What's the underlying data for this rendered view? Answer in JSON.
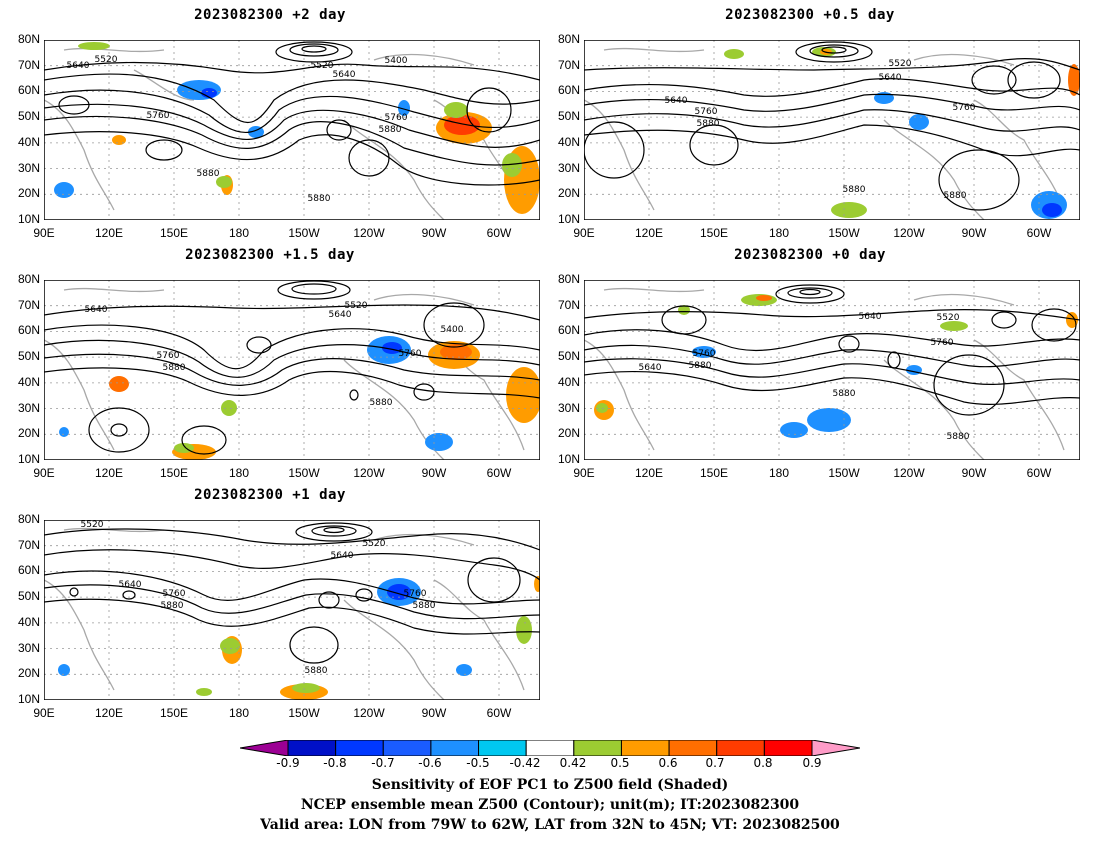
{
  "panels": [
    {
      "title": "2023082300  +2  day",
      "labels": [
        "5640",
        "5520",
        "5520",
        "5640",
        "5400",
        "5760",
        "5760",
        "5880",
        "5880",
        "5880"
      ]
    },
    {
      "title": "2023082300  +0.5  day",
      "labels": [
        "5520",
        "5640",
        "5640",
        "5760",
        "5760",
        "5880",
        "5880",
        "5880"
      ]
    },
    {
      "title": "2023082300  +1.5  day",
      "labels": [
        "5640",
        "5520",
        "5640",
        "5400",
        "5760",
        "5760",
        "5880",
        "5880"
      ]
    },
    {
      "title": "2023082300  +0  day",
      "labels": [
        "5640",
        "5520",
        "5760",
        "5760",
        "5640",
        "5880",
        "5880",
        "5880"
      ]
    },
    {
      "title": "2023082300  +1  day",
      "labels": [
        "5520",
        "5520",
        "5640",
        "5640",
        "5760",
        "5760",
        "5880",
        "5880",
        "5880"
      ]
    }
  ],
  "axes": {
    "lat_labels": [
      "80N",
      "70N",
      "60N",
      "50N",
      "40N",
      "30N",
      "20N",
      "10N"
    ],
    "lon_labels": [
      "90E",
      "120E",
      "150E",
      "180",
      "150W",
      "120W",
      "90W",
      "60W"
    ]
  },
  "colorbar": {
    "ticks": [
      "-0.9",
      "-0.8",
      "-0.7",
      "-0.6",
      "-0.5",
      "-0.42",
      "0.42",
      "0.5",
      "0.6",
      "0.7",
      "0.8",
      "0.9"
    ],
    "colors": [
      "#9c0094",
      "#0010c8",
      "#0038ff",
      "#1a5cff",
      "#1e90ff",
      "#00c8f0",
      "#ffffff",
      "#9ccc32",
      "#ff9c00",
      "#ff6e00",
      "#ff3c00",
      "#ff0000",
      "#ff9cc8"
    ]
  },
  "captions": [
    "Sensitivity of EOF PC1 to Z500 field (Shaded)",
    "NCEP ensemble mean Z500 (Contour); unit(m); IT:2023082300",
    "Valid area: LON from 79W to 62W, LAT from 32N to 45N; VT: 2023082500"
  ]
}
